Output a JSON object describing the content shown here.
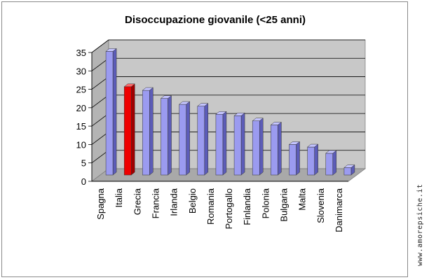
{
  "colors": {
    "bar_default": "#9b9bf0",
    "bar_default_side": "#5c5cb8",
    "bar_default_top": "#c4c4ff",
    "bar_highlight": "#ee0000",
    "bar_highlight_side": "#a00000",
    "bar_highlight_top": "#ff6a6a",
    "plot_back": "#c8c8c8",
    "plot_floor": "#a9a9a9",
    "plot_side": "#b4b4b4"
  },
  "watermark": "www.amorepsiche.it",
  "chart_data": {
    "type": "bar",
    "title": "Disoccupazione giovanile (<25 anni)",
    "xlabel": "",
    "ylabel": "",
    "ylim": [
      0,
      35
    ],
    "yticks": [
      0,
      5,
      10,
      15,
      20,
      25,
      30,
      35
    ],
    "grid": true,
    "legend": "none",
    "categories": [
      "Spagna",
      "Italia",
      "Grecia",
      "Francia",
      "Irlanda",
      "Belgio",
      "Romania",
      "Portogallo",
      "Finlandia",
      "Polonia",
      "Bulgaria",
      "Malta",
      "Slovenia",
      "Danimarca"
    ],
    "values": [
      33.6,
      24.0,
      23.0,
      20.8,
      19.2,
      18.7,
      16.5,
      16.1,
      14.7,
      13.6,
      8.3,
      7.6,
      5.9,
      2.0
    ],
    "highlight_category": "Italia"
  }
}
